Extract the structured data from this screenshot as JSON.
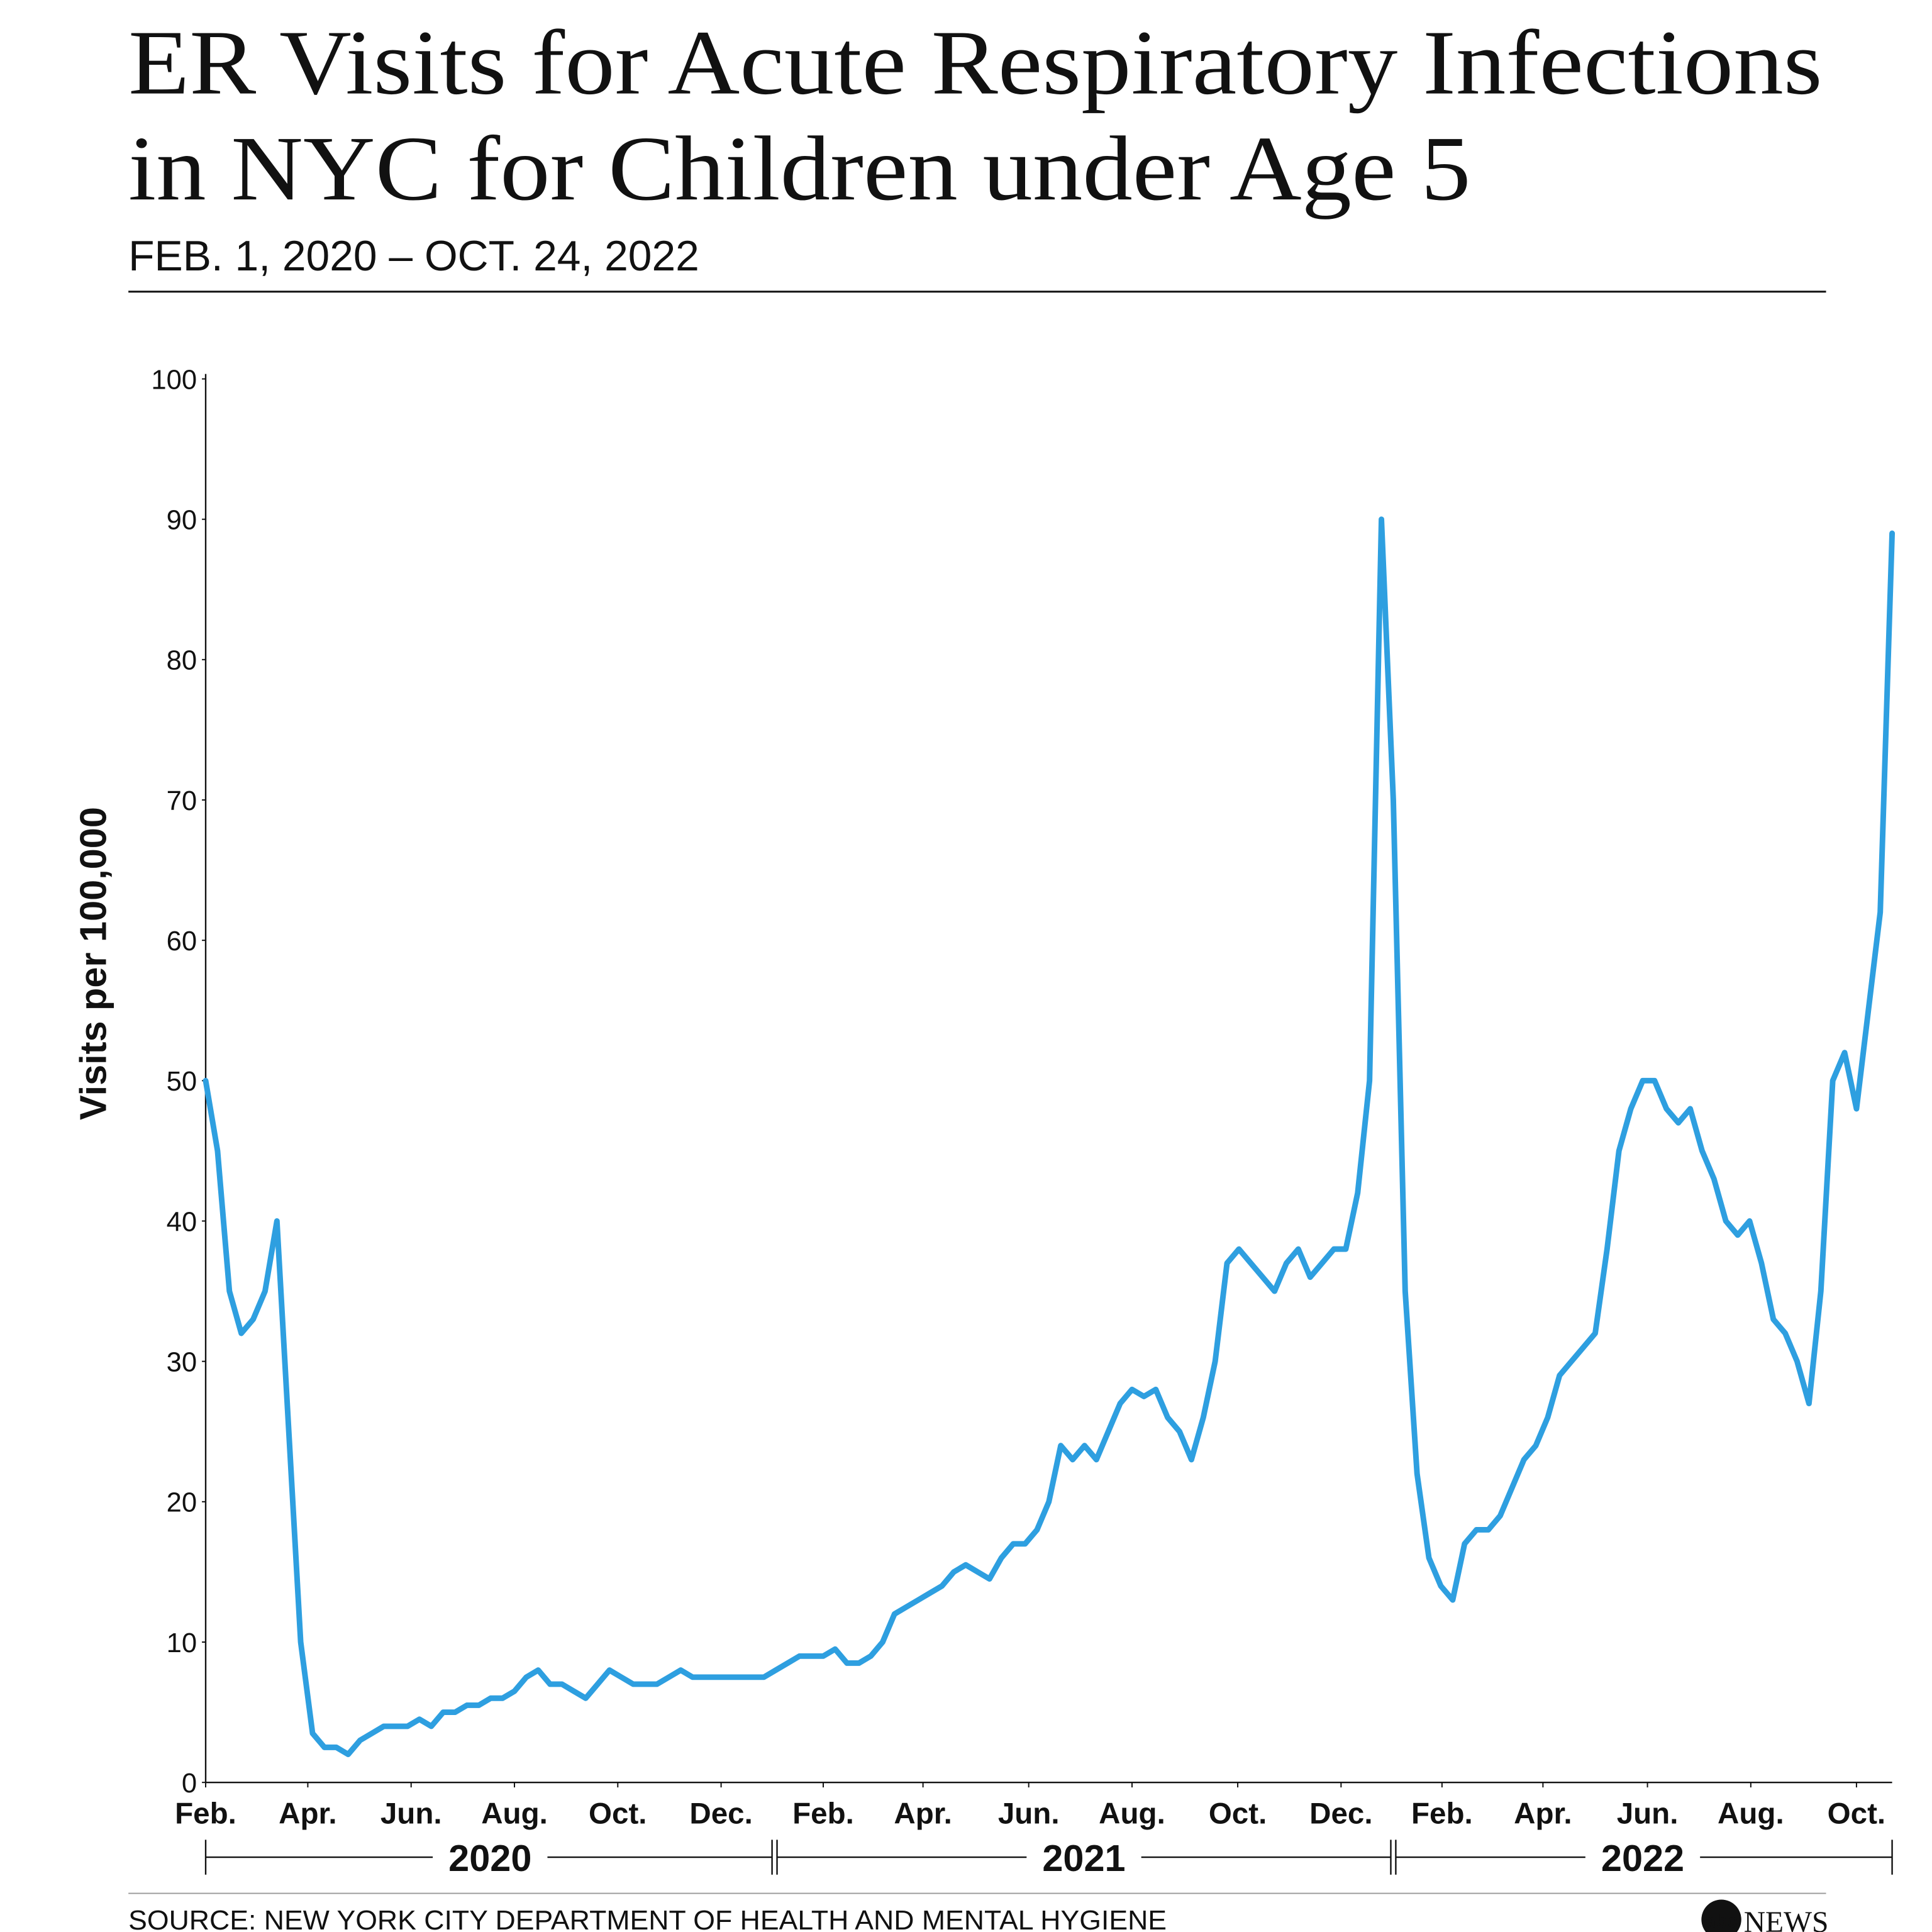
{
  "chart_data": {
    "type": "line",
    "title": [
      "ER Visits for Acute Respiratory Infections",
      "in NYC for Children under Age 5"
    ],
    "subtitle": "FEB. 1, 2020 – OCT. 24, 2022",
    "y_label": "Visits per 100,000",
    "source": "SOURCE: NEW YORK CITY DEPARTMENT OF HEALTH AND MENTAL HYGIENE",
    "logo": {
      "mark": "abc",
      "text": "NEWS"
    },
    "series": [
      {
        "name": "ER visits",
        "color": "#2e9fe0",
        "values": [
          50,
          45,
          35,
          32,
          33,
          35,
          40,
          25,
          10,
          3.5,
          2.5,
          2.5,
          2,
          3,
          3.5,
          4,
          4,
          4,
          4.5,
          4,
          5,
          5,
          5.5,
          5.5,
          6,
          6,
          6.5,
          7.5,
          8,
          7,
          7,
          6.5,
          6,
          7,
          8,
          7.5,
          7,
          7,
          7,
          7.5,
          8,
          7.5,
          7.5,
          7.5,
          7.5,
          7.5,
          7.5,
          7.5,
          8,
          8.5,
          9,
          9,
          9,
          9.5,
          8.5,
          8.5,
          9,
          10,
          12,
          12.5,
          13,
          13.5,
          14,
          15,
          15.5,
          15,
          14.5,
          16,
          17,
          17,
          18,
          20,
          24,
          23,
          24,
          23,
          25,
          27,
          28,
          27.5,
          28,
          26,
          25,
          23,
          26,
          30,
          37,
          38,
          37,
          36,
          35,
          37,
          38,
          36,
          37,
          38,
          38,
          42,
          50,
          90,
          70,
          35,
          22,
          16,
          14,
          13,
          17,
          18,
          18,
          19,
          21,
          23,
          24,
          26,
          29,
          30,
          31,
          32,
          38,
          45,
          48,
          50,
          50,
          48,
          47,
          48,
          45,
          43,
          40,
          39,
          40,
          37,
          33,
          32,
          30,
          27,
          35,
          50,
          52,
          48,
          55,
          62,
          89
        ]
      }
    ],
    "xlim": [
      0,
      142
    ],
    "xticks": [
      {
        "value": 0,
        "label": "Feb."
      },
      {
        "value": 8.6,
        "label": "Apr."
      },
      {
        "value": 17.3,
        "label": "Jun."
      },
      {
        "value": 26,
        "label": "Aug."
      },
      {
        "value": 34.7,
        "label": "Oct."
      },
      {
        "value": 43.4,
        "label": "Dec."
      },
      {
        "value": 52,
        "label": "Feb."
      },
      {
        "value": 60.4,
        "label": "Apr."
      },
      {
        "value": 69.3,
        "label": "Jun."
      },
      {
        "value": 78,
        "label": "Aug."
      },
      {
        "value": 86.9,
        "label": "Oct."
      },
      {
        "value": 95.6,
        "label": "Dec."
      },
      {
        "value": 104.1,
        "label": "Feb."
      },
      {
        "value": 112.6,
        "label": "Apr."
      },
      {
        "value": 121.4,
        "label": "Jun."
      },
      {
        "value": 130.1,
        "label": "Aug."
      },
      {
        "value": 139,
        "label": "Oct."
      }
    ],
    "year_groups": [
      {
        "label": "2020",
        "start": 0,
        "end": 47.9
      },
      {
        "label": "2021",
        "start": 47.9,
        "end": 100
      },
      {
        "label": "2022",
        "start": 100,
        "end": 142
      }
    ],
    "ylim": [
      0,
      100
    ],
    "yticks": [
      0,
      10,
      20,
      30,
      40,
      50,
      60,
      70,
      80,
      90,
      100
    ],
    "grid": false
  }
}
